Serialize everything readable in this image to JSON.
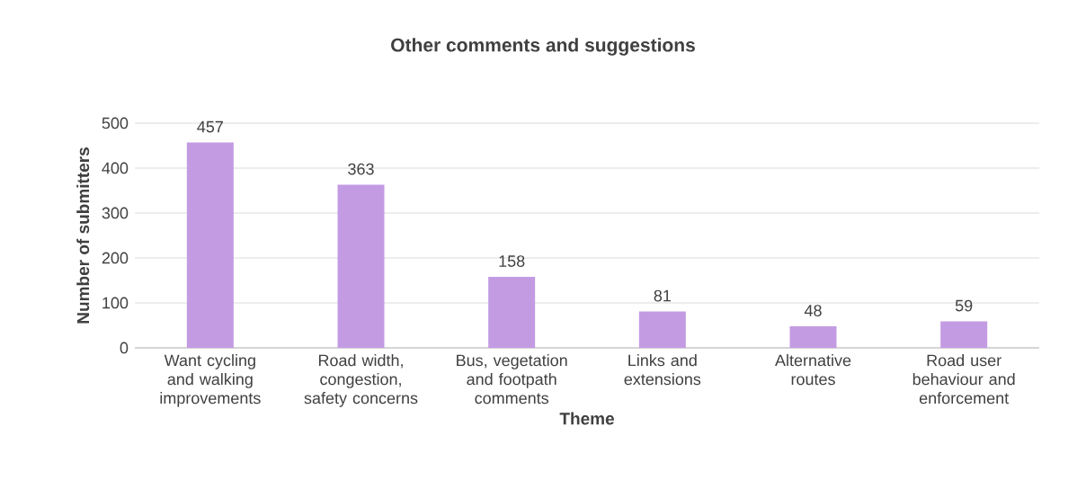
{
  "chart_data": {
    "type": "bar",
    "title": "Other comments and suggestions",
    "xlabel": "Theme",
    "ylabel": "Number of submitters",
    "categories": [
      "Want cycling and walking improvements",
      "Road width, congestion, safety concerns",
      "Bus, vegetation and footpath comments",
      "Links and extensions",
      "Alternative routes",
      "Road user behaviour and enforcement"
    ],
    "values": [
      457,
      363,
      158,
      81,
      48,
      59
    ],
    "color": "#c39be3",
    "ylim": [
      0,
      500
    ],
    "yticks": [
      0,
      100,
      200,
      300,
      400,
      500
    ],
    "grid": "y",
    "data_labels": true
  }
}
